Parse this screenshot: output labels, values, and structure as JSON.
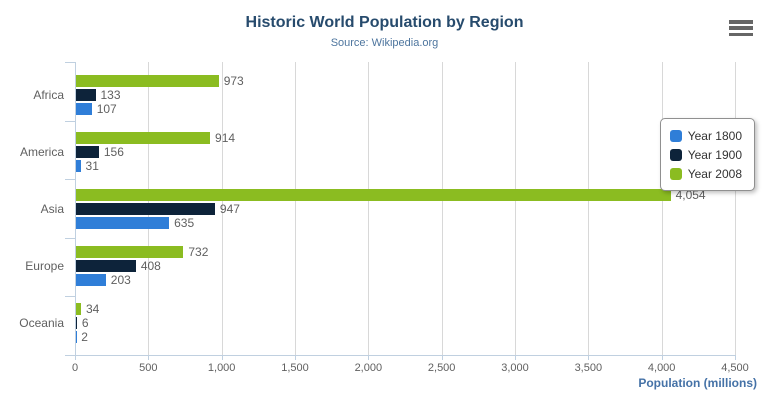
{
  "chart_data": {
    "type": "bar",
    "orientation": "horizontal",
    "title": "Historic World Population by Region",
    "subtitle": "Source: Wikipedia.org",
    "xlabel": "Population (millions)",
    "categories": [
      "Africa",
      "America",
      "Asia",
      "Europe",
      "Oceania"
    ],
    "series": [
      {
        "name": "Year 1800",
        "color": "#2f7ed8",
        "values": [
          107,
          31,
          635,
          203,
          2
        ]
      },
      {
        "name": "Year 1900",
        "color": "#0d233a",
        "values": [
          133,
          156,
          947,
          408,
          6
        ]
      },
      {
        "name": "Year 2008",
        "color": "#8bbc21",
        "values": [
          973,
          914,
          4054,
          732,
          34
        ]
      }
    ],
    "bar_order_top_to_bottom": [
      "Year 2008",
      "Year 1900",
      "Year 1800"
    ],
    "xlim": [
      0,
      4500
    ],
    "xticks": [
      0,
      500,
      1000,
      1500,
      2000,
      2500,
      3000,
      3500,
      4000,
      4500
    ],
    "grid": "vertical-on",
    "legend_position": "right"
  },
  "colors": {
    "title": "#274b6d",
    "subtitle": "#4d759e",
    "axis_title": "#4572a7",
    "tick_label": "#606060",
    "value_label": "#606060",
    "gridline": "#d8d8d8",
    "axis_line": "#c0d0e0",
    "legend_border": "#909090",
    "menu_icon": "#666666"
  },
  "menu": {
    "icon": "hamburger-icon"
  }
}
